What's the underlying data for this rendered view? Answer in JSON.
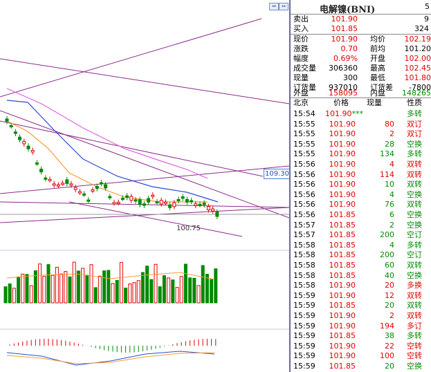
{
  "window": {
    "instrument_title": "电解镍(BNI)",
    "title_right": "5"
  },
  "chart": {
    "price_tag": "109.30",
    "low_label": "100.75",
    "colors": {
      "up": "#e00000",
      "down": "#008a00",
      "trend": "#8a2a8a",
      "ma1": "#2a4ad8",
      "ma2": "#ff9a2a",
      "ma3": "#e060e0"
    }
  },
  "quote": {
    "sell": {
      "label": "卖出",
      "value": "101.90",
      "extra": "9"
    },
    "buy": {
      "label": "买入",
      "value": "101.85",
      "extra": "324"
    },
    "current": {
      "label": "现价",
      "value": "101.90",
      "label2": "均价",
      "value2": "102.19"
    },
    "change": {
      "label": "涨跌",
      "value": "0.70",
      "label2": "前均",
      "value2": "101.20"
    },
    "pct": {
      "label": "幅度",
      "value": "0.69%",
      "label2": "开盘",
      "value2": "102.00"
    },
    "volume": {
      "label": "成交量",
      "value": "306360",
      "label2": "最高",
      "value2": "102.45"
    },
    "nowvol": {
      "label": "现量",
      "value": "300",
      "label2": "最低",
      "value2": "101.80"
    },
    "orders": {
      "label": "订货量",
      "value": "937010",
      "label2": "订货差",
      "value2": "-7800"
    },
    "outer": {
      "label": "外盘",
      "value": "158095",
      "label2": "内盘",
      "value2": "148265"
    }
  },
  "ticks_header": {
    "time": "北京",
    "price": "价格",
    "vol": "现量",
    "nature": "性质"
  },
  "ticks": [
    {
      "time": "15:54",
      "price": "101.90",
      "mark": "***",
      "vol": "",
      "nature": "多转",
      "pc": "red",
      "nc": "green"
    },
    {
      "time": "15:55",
      "price": "101.90",
      "mark": "",
      "vol": "80",
      "nature": "双订",
      "pc": "red",
      "nc": "red"
    },
    {
      "time": "15:55",
      "price": "101.90",
      "mark": "",
      "vol": "2",
      "nature": "双订",
      "pc": "red",
      "nc": "red"
    },
    {
      "time": "15:55",
      "price": "101.90",
      "mark": "",
      "vol": "28",
      "nature": "空换",
      "pc": "red",
      "nc": "green"
    },
    {
      "time": "15:55",
      "price": "101.90",
      "mark": "",
      "vol": "134",
      "nature": "多转",
      "pc": "red",
      "nc": "green"
    },
    {
      "time": "15:56",
      "price": "101.90",
      "mark": "",
      "vol": "4",
      "nature": "双转",
      "pc": "red",
      "nc": "red"
    },
    {
      "time": "15:56",
      "price": "101.90",
      "mark": "",
      "vol": "114",
      "nature": "双转",
      "pc": "red",
      "nc": "red"
    },
    {
      "time": "15:56",
      "price": "101.90",
      "mark": "",
      "vol": "10",
      "nature": "双转",
      "pc": "red",
      "nc": "green"
    },
    {
      "time": "15:56",
      "price": "101.90",
      "mark": "",
      "vol": "4",
      "nature": "空换",
      "pc": "red",
      "nc": "green"
    },
    {
      "time": "15:56",
      "price": "101.90",
      "mark": "",
      "vol": "76",
      "nature": "双转",
      "pc": "red",
      "nc": "green"
    },
    {
      "time": "15:56",
      "price": "101.85",
      "mark": "",
      "vol": "6",
      "nature": "空换",
      "pc": "red",
      "nc": "green"
    },
    {
      "time": "15:57",
      "price": "101.85",
      "mark": "",
      "vol": "2",
      "nature": "空换",
      "pc": "red",
      "nc": "green"
    },
    {
      "time": "15:57",
      "price": "101.85",
      "mark": "",
      "vol": "200",
      "nature": "空订",
      "pc": "red",
      "nc": "green"
    },
    {
      "time": "15:58",
      "price": "101.85",
      "mark": "",
      "vol": "4",
      "nature": "多转",
      "pc": "red",
      "nc": "green"
    },
    {
      "time": "15:58",
      "price": "101.85",
      "mark": "",
      "vol": "200",
      "nature": "空订",
      "pc": "red",
      "nc": "green"
    },
    {
      "time": "15:58",
      "price": "101.85",
      "mark": "",
      "vol": "60",
      "nature": "双转",
      "pc": "red",
      "nc": "green"
    },
    {
      "time": "15:58",
      "price": "101.85",
      "mark": "",
      "vol": "40",
      "nature": "空换",
      "pc": "red",
      "nc": "green"
    },
    {
      "time": "15:58",
      "price": "101.90",
      "mark": "",
      "vol": "20",
      "nature": "多换",
      "pc": "red",
      "nc": "red"
    },
    {
      "time": "15:59",
      "price": "101.90",
      "mark": "",
      "vol": "12",
      "nature": "双转",
      "pc": "red",
      "nc": "red"
    },
    {
      "time": "15:59",
      "price": "101.85",
      "mark": "",
      "vol": "20",
      "nature": "双转",
      "pc": "red",
      "nc": "green"
    },
    {
      "time": "15:59",
      "price": "101.90",
      "mark": "",
      "vol": "2",
      "nature": "双转",
      "pc": "red",
      "nc": "red"
    },
    {
      "time": "15:59",
      "price": "101.90",
      "mark": "",
      "vol": "194",
      "nature": "多订",
      "pc": "red",
      "nc": "red"
    },
    {
      "time": "15:59",
      "price": "101.85",
      "mark": "",
      "vol": "38",
      "nature": "多转",
      "pc": "red",
      "nc": "green"
    },
    {
      "time": "15:59",
      "price": "101.90",
      "mark": "",
      "vol": "22",
      "nature": "空转",
      "pc": "red",
      "nc": "red"
    },
    {
      "time": "15:59",
      "price": "101.90",
      "mark": "",
      "vol": "100",
      "nature": "空转",
      "pc": "red",
      "nc": "red"
    },
    {
      "time": "15:59",
      "price": "101.85",
      "mark": "",
      "vol": "20",
      "nature": "空换",
      "pc": "red",
      "nc": "green"
    }
  ]
}
